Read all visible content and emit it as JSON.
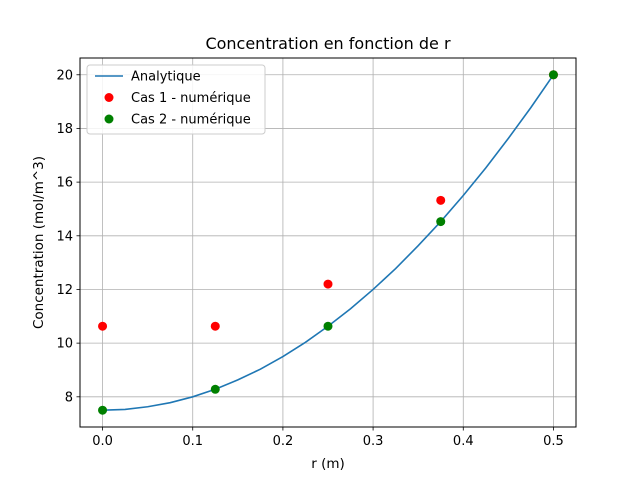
{
  "chart_data": {
    "type": "line",
    "title": "Concentration en fonction de r",
    "xlabel": "r (m)",
    "ylabel": "Concentration (mol/m^3)",
    "xlim": [
      -0.025,
      0.525
    ],
    "ylim": [
      6.875,
      20.625
    ],
    "xticks": [
      0.0,
      0.1,
      0.2,
      0.3,
      0.4,
      0.5
    ],
    "xtick_labels": [
      "0.0",
      "0.1",
      "0.2",
      "0.3",
      "0.4",
      "0.5"
    ],
    "yticks": [
      8,
      10,
      12,
      14,
      16,
      18,
      20
    ],
    "ytick_labels": [
      "8",
      "10",
      "12",
      "14",
      "16",
      "18",
      "20"
    ],
    "grid": true,
    "legend_position": "top-left",
    "series": [
      {
        "name": "Analytique",
        "kind": "line",
        "color": "#1f77b4",
        "x": [
          0.0,
          0.025,
          0.05,
          0.075,
          0.1,
          0.125,
          0.15,
          0.175,
          0.2,
          0.225,
          0.25,
          0.275,
          0.3,
          0.325,
          0.35,
          0.375,
          0.4,
          0.425,
          0.45,
          0.475,
          0.5
        ],
        "y": [
          7.5,
          7.53,
          7.63,
          7.78,
          8.0,
          8.28,
          8.63,
          9.03,
          9.5,
          10.03,
          10.63,
          11.28,
          12.0,
          12.78,
          13.63,
          14.53,
          15.5,
          16.53,
          17.63,
          18.78,
          20.0
        ]
      },
      {
        "name": "Cas 1 - numérique",
        "kind": "scatter",
        "color": "#ff0000",
        "x": [
          0.0,
          0.125,
          0.25,
          0.375,
          0.5
        ],
        "y": [
          10.63,
          10.63,
          12.2,
          15.32,
          20.0
        ]
      },
      {
        "name": "Cas 2 - numérique",
        "kind": "scatter",
        "color": "#008000",
        "x": [
          0.0,
          0.125,
          0.25,
          0.375,
          0.5
        ],
        "y": [
          7.5,
          8.28,
          10.63,
          14.53,
          20.0
        ]
      }
    ]
  }
}
